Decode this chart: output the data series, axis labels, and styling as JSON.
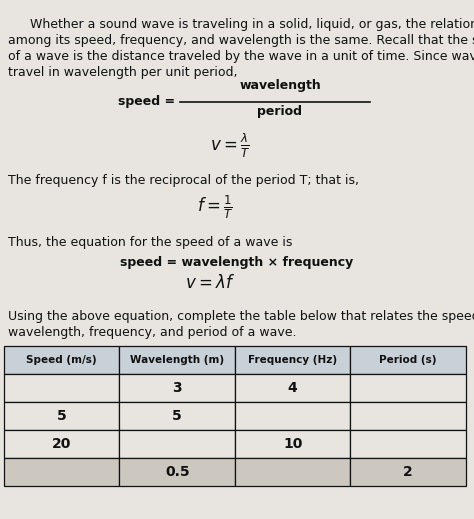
{
  "bg_color": "#e8e5e0",
  "page_color": "#f0eeea",
  "text_color": "#111111",
  "paragraph_line1": "Whether a sound wave is traveling in a solid, liquid, or gas, the relationship",
  "paragraph_line2": "among its speed, frequency, and wavelength is the same. Recall that the speed",
  "paragraph_line3": "of a wave is the distance traveled by the wave in a unit of time. Since waves",
  "paragraph_line4": "travel in wavelength per unit period,",
  "freq_text": "The frequency f is the reciprocal of the period T; that is,",
  "thus_text": "Thus, the equation for the speed of a wave is",
  "eq4": "speed = wavelength × frequency",
  "using_line1": "Using the above equation, complete the table below that relates the speed,",
  "using_line2": "wavelength, frequency, and period of a wave.",
  "table_headers": [
    "Speed (m/s)",
    "Wavelength (m)",
    "Frequency (Hz)",
    "Period (s)"
  ],
  "table_rows": [
    [
      "",
      "3",
      "4",
      ""
    ],
    [
      "5",
      "5",
      "",
      ""
    ],
    [
      "20",
      "",
      "10",
      ""
    ],
    [
      "",
      "0.5",
      "",
      "2"
    ]
  ],
  "header_bg": "#c8d0d8",
  "row_bg": "#e8e5e0",
  "row_bg_last": "#ccc8c0"
}
